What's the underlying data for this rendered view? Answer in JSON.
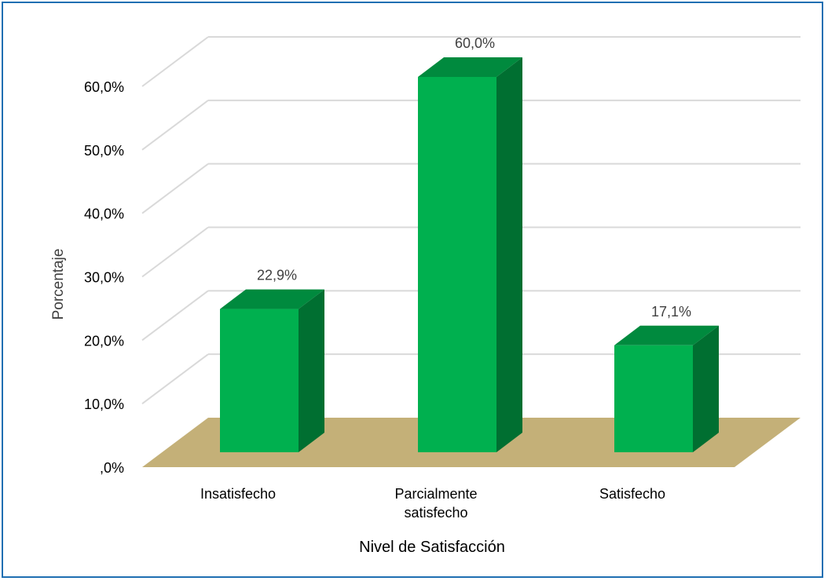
{
  "chart_data": {
    "type": "bar",
    "categories": [
      "Insatisfecho",
      "Parcialmente satisfecho",
      "Satisfecho"
    ],
    "category_lines": [
      [
        "Insatisfecho"
      ],
      [
        "Parcialmente",
        "satisfecho"
      ],
      [
        "Satisfecho"
      ]
    ],
    "values": [
      22.9,
      60.0,
      17.1
    ],
    "data_labels": [
      "22,9%",
      "60,0%",
      "17,1%"
    ],
    "xlabel": "Nivel de Satisfacción",
    "ylabel": "Porcentaje",
    "ylim": [
      0,
      60
    ],
    "yticks": [
      0,
      10,
      20,
      30,
      40,
      50,
      60
    ],
    "ytick_labels": [
      ",0%",
      "10,0%",
      "20,0%",
      "30,0%",
      "40,0%",
      "50,0%",
      "60,0%"
    ],
    "grid": true,
    "style": "3d-column",
    "colors": {
      "bar_front": "#00b04f",
      "bar_top": "#008a3e",
      "bar_side": "#006f31",
      "floor": "#c4b078",
      "grid": "#d9d9d9",
      "border": "#1f6fb2"
    }
  }
}
